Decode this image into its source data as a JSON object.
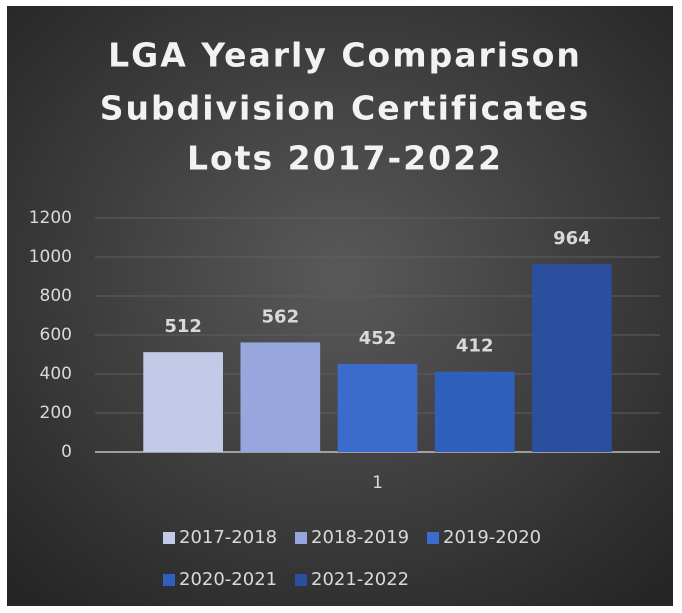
{
  "chart_data": {
    "type": "bar",
    "title": [
      "LGA Yearly Comparison",
      "Subdivision Certificates",
      "Lots 2017-2022"
    ],
    "categories": [
      "1"
    ],
    "series": [
      {
        "name": "2017-2018",
        "color": "#c3cae8",
        "values": [
          512
        ]
      },
      {
        "name": "2018-2019",
        "color": "#97a6dc",
        "values": [
          562
        ]
      },
      {
        "name": "2019-2020",
        "color": "#3b6bcc",
        "values": [
          452
        ]
      },
      {
        "name": "2020-2021",
        "color": "#3060bb",
        "values": [
          412
        ]
      },
      {
        "name": "2021-2022",
        "color": "#2c4e9e",
        "values": [
          964
        ]
      }
    ],
    "ylim": [
      0,
      1200
    ],
    "yticks": [
      0,
      200,
      400,
      600,
      800,
      1000,
      1200
    ],
    "grid": true
  }
}
